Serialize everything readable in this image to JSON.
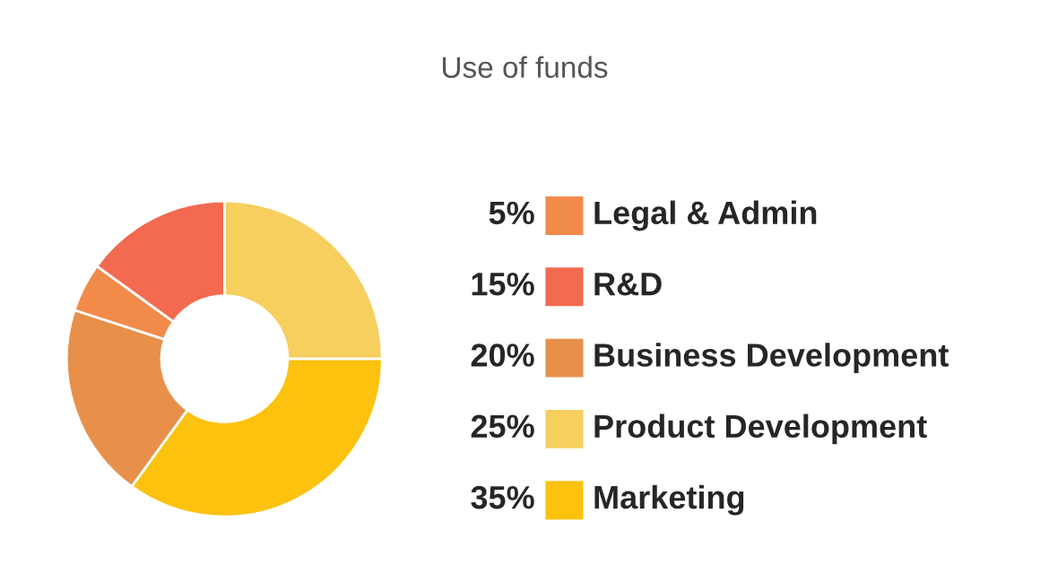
{
  "chart_data": {
    "type": "donut",
    "title": "Use of funds",
    "categories": [
      "Product Development",
      "Marketing",
      "Business Development",
      "Legal & Admin",
      "R&D"
    ],
    "values": [
      25,
      35,
      20,
      5,
      15
    ],
    "value_labels": [
      "25%",
      "35%",
      "20%",
      "5%",
      "15%"
    ],
    "colors": [
      "#f6cf5f",
      "#fcc20e",
      "#e8904a",
      "#f28b4a",
      "#f26a4f"
    ],
    "legend": "right"
  }
}
